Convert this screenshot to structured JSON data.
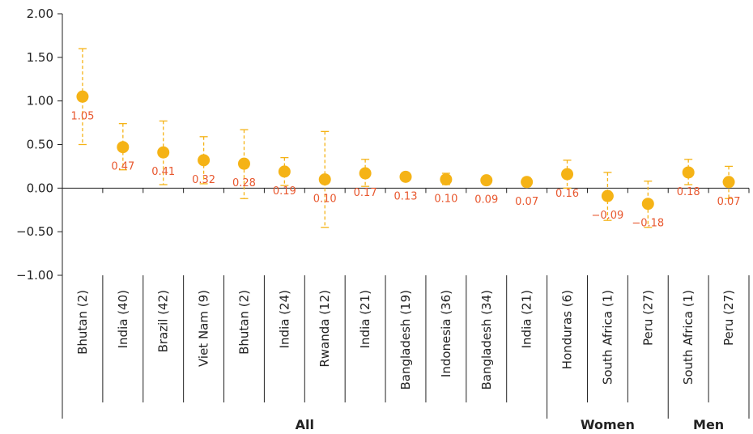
{
  "chart_data": {
    "type": "scatter",
    "title": "",
    "xlabel": "",
    "ylabel": "",
    "ylim": [
      -1.0,
      2.0
    ],
    "yticks": [
      "2.00",
      "1.50",
      "1.00",
      "0.50",
      "0.00",
      "−0.50",
      "−1.00"
    ],
    "grid": false,
    "colors": {
      "marker": "#f5b316",
      "errorbar": "#f5b316",
      "label": "#e8572e",
      "axis": "#222222"
    },
    "categories": [
      "Bhutan (2)",
      "India (40)",
      "Brazil (42)",
      "Viet Nam (9)",
      "Bhutan (2)",
      "India (24)",
      "Rwanda (12)",
      "India (21)",
      "Bangladesh (19)",
      "Indonesia (36)",
      "Bangladesh (34)",
      "India (21)",
      "Honduras (6)",
      "South Africa (1)",
      "Peru (27)",
      "South Africa (1)",
      "Peru (27)"
    ],
    "values": [
      1.05,
      0.47,
      0.41,
      0.32,
      0.28,
      0.19,
      0.1,
      0.17,
      0.13,
      0.1,
      0.09,
      0.07,
      0.16,
      -0.09,
      -0.18,
      0.18,
      0.07
    ],
    "labels": [
      "1.05",
      "0.47",
      "0.41",
      "0.32",
      "0.28",
      "0.19",
      "0.10",
      "0.17",
      "0.13",
      "0.10",
      "0.09",
      "0.07",
      "0.16",
      "−0.09",
      "−0.18",
      "0.18",
      "0.07"
    ],
    "error_low": [
      0.5,
      0.21,
      0.04,
      0.05,
      -0.12,
      0.03,
      -0.45,
      0.02,
      0.1,
      0.04,
      0.06,
      0.02,
      0.0,
      -0.37,
      -0.45,
      0.04,
      -0.12
    ],
    "error_high": [
      1.6,
      0.74,
      0.77,
      0.59,
      0.67,
      0.35,
      0.65,
      0.33,
      0.16,
      0.17,
      0.12,
      0.12,
      0.32,
      0.18,
      0.08,
      0.33,
      0.25
    ],
    "groups": [
      {
        "name": "All",
        "start": 0,
        "end": 11
      },
      {
        "name": "Women",
        "start": 12,
        "end": 14
      },
      {
        "name": "Men",
        "start": 15,
        "end": 16
      }
    ]
  }
}
